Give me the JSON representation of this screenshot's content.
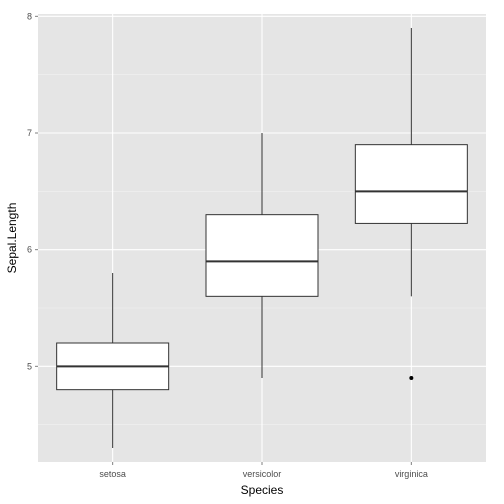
{
  "chart_data": {
    "type": "boxplot",
    "title": "",
    "xlabel": "Species",
    "ylabel": "Sepal.Length",
    "categories": [
      "setosa",
      "versicolor",
      "virginica"
    ],
    "boxes": [
      {
        "category": "setosa",
        "min": 4.3,
        "q1": 4.8,
        "median": 5.0,
        "q3": 5.2,
        "max": 5.8,
        "outliers": []
      },
      {
        "category": "versicolor",
        "min": 4.9,
        "q1": 5.6,
        "median": 5.9,
        "q3": 6.3,
        "max": 7.0,
        "outliers": []
      },
      {
        "category": "virginica",
        "min": 5.6,
        "q1": 6.225,
        "median": 6.5,
        "q3": 6.9,
        "max": 7.9,
        "outliers": [
          4.9
        ]
      }
    ],
    "ylim": [
      4.18,
      8.02
    ],
    "yticks": [
      5,
      6,
      7,
      8
    ],
    "grid": true,
    "colors": {
      "panel_background": "#e5e5e5",
      "grid_major": "#ffffff",
      "grid_minor": "#f2f2f2",
      "box_fill": "#ffffff",
      "box_stroke": "#333333",
      "outlier": "#000000"
    }
  }
}
